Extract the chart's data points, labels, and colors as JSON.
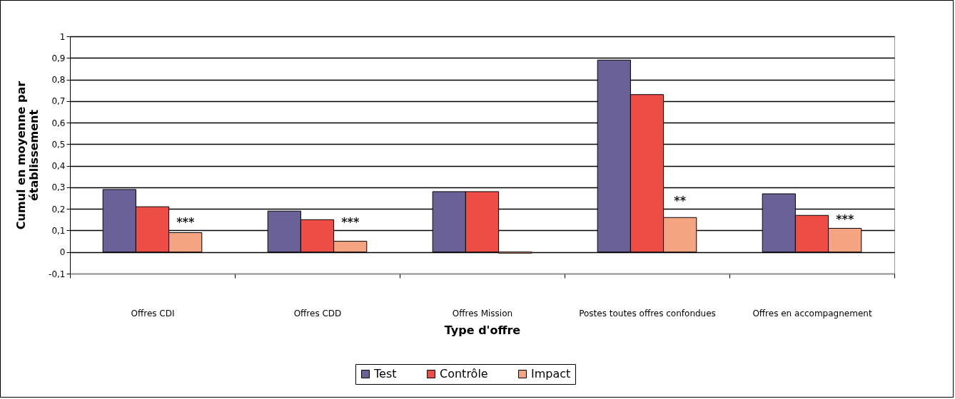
{
  "chart_data": {
    "type": "bar",
    "xlabel": "Type d'offre",
    "ylabel": "Cumul en moyenne par établissement",
    "categories": [
      "Offres CDI",
      "Offres CDD",
      "Offres Mission",
      "Postes toutes offres confondues",
      "Offres en accompagnement"
    ],
    "series": [
      {
        "name": "Test",
        "color": "#6a6198",
        "values": [
          0.29,
          0.19,
          0.28,
          0.89,
          0.27
        ]
      },
      {
        "name": "Contrôle",
        "color": "#ee4d45",
        "values": [
          0.21,
          0.15,
          0.28,
          0.73,
          0.17
        ]
      },
      {
        "name": "Impact",
        "color": "#f5a482",
        "values": [
          0.09,
          0.05,
          -0.005,
          0.16,
          0.11
        ]
      }
    ],
    "ylim": [
      -0.1,
      1
    ],
    "yticks": [
      {
        "value": -0.1,
        "label": "-0,1"
      },
      0,
      {
        "value": 0.1,
        "label": "0,1"
      },
      {
        "value": 0.2,
        "label": "0,2"
      },
      {
        "value": 0.3,
        "label": "0,3"
      },
      {
        "value": 0.4,
        "label": "0,4"
      },
      {
        "value": 0.5,
        "label": "0,5"
      },
      {
        "value": 0.6,
        "label": "0,6"
      },
      {
        "value": 0.7,
        "label": "0,7"
      },
      {
        "value": 0.8,
        "label": "0,8"
      },
      {
        "value": 0.9,
        "label": "0,9"
      },
      1
    ],
    "grid": "y",
    "legend": "bottom",
    "annotations": [
      "***",
      "***",
      "**",
      "***"
    ]
  }
}
